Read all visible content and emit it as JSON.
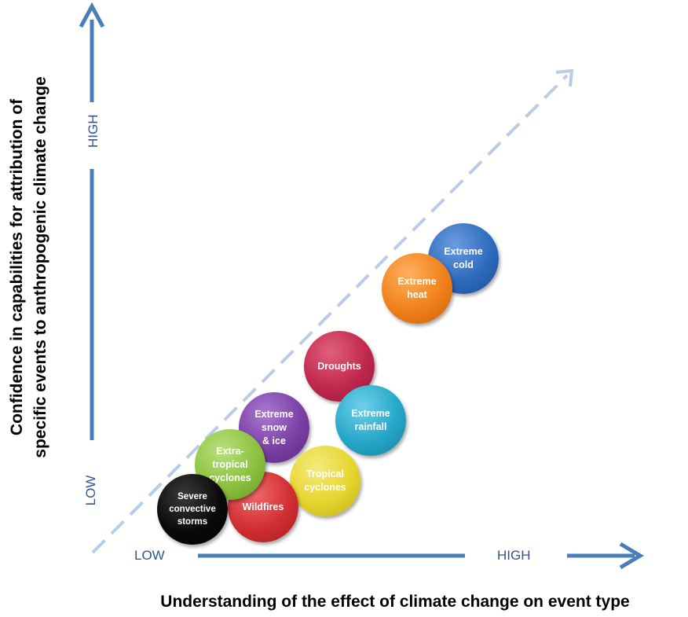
{
  "y_axis": {
    "title": "Confidence in capabilities for attribution of\nspecific events to anthropogenic climate change",
    "low_label": "LOW",
    "high_label": "HIGH"
  },
  "x_axis": {
    "title": "Understanding of the effect of climate change on event type",
    "low_label": "LOW",
    "high_label": "HIGH"
  },
  "colors": {
    "arrow": "#4a7ebb",
    "diagonal": "#b9cde5",
    "axis_text": "#2f5597"
  },
  "events": [
    {
      "label": "Extreme\ncold",
      "color": "#2e6bbd"
    },
    {
      "label": "Extreme\nheat",
      "color": "#f0801a"
    },
    {
      "label": "Droughts",
      "color": "#c0274d"
    },
    {
      "label": "Extreme\nrainfall",
      "color": "#25a7c9"
    },
    {
      "label": "Extreme\nsnow\n& ice",
      "color": "#7a3fa5"
    },
    {
      "label": "Tropical\ncyclones",
      "color": "#e6d52f"
    },
    {
      "label": "Extra-\ntropical\ncyclones",
      "color": "#8bc13f"
    },
    {
      "label": "Wildfires",
      "color": "#d12e32"
    },
    {
      "label": "Severe\nconvective\nstorms",
      "color": "#0a0a0a"
    }
  ]
}
